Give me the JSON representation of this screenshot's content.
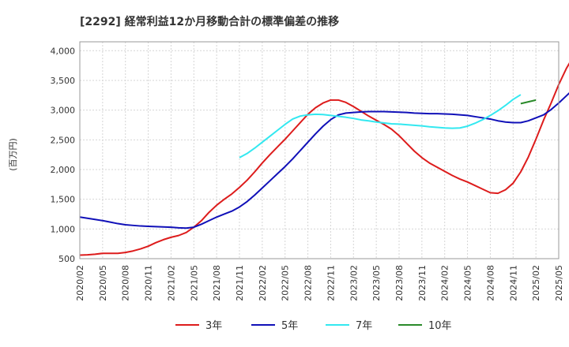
{
  "chart_data": {
    "type": "line",
    "title": "[2292]  経常利益12か月移動合計の標準偏差の推移",
    "ylabel": "(百万円)",
    "xlabel": "",
    "ylim": [
      500,
      4150
    ],
    "yticks": [
      500,
      1000,
      1500,
      2000,
      2500,
      3000,
      3500,
      4000
    ],
    "ytick_labels": [
      "500",
      "1,000",
      "1,500",
      "2,000",
      "2,500",
      "3,000",
      "3,500",
      "4,000"
    ],
    "xticks": [
      "2020/02",
      "2020/05",
      "2020/08",
      "2020/11",
      "2021/02",
      "2021/05",
      "2021/08",
      "2021/11",
      "2022/02",
      "2022/05",
      "2022/08",
      "2022/11",
      "2023/02",
      "2023/05",
      "2023/08",
      "2023/11",
      "2024/02",
      "2024/05",
      "2024/08",
      "2024/11",
      "2025/02",
      "2025/05"
    ],
    "grid": true,
    "legend_position": "bottom",
    "series": [
      {
        "name": "3年",
        "color": "#dd1c1c",
        "start": "2020/02",
        "values": [
          560,
          565,
          575,
          590,
          590,
          590,
          605,
          630,
          665,
          710,
          770,
          820,
          860,
          890,
          940,
          1030,
          1140,
          1280,
          1400,
          1500,
          1590,
          1700,
          1820,
          1960,
          2110,
          2250,
          2380,
          2510,
          2650,
          2790,
          2930,
          3040,
          3120,
          3170,
          3170,
          3130,
          3060,
          2980,
          2900,
          2830,
          2760,
          2680,
          2570,
          2440,
          2310,
          2200,
          2110,
          2040,
          1970,
          1900,
          1840,
          1790,
          1730,
          1670,
          1610,
          1600,
          1660,
          1770,
          1960,
          2210,
          2510,
          2830,
          3120,
          3430,
          3700,
          3920,
          4070
        ]
      },
      {
        "name": "5年",
        "color": "#1010b8",
        "start": "2020/02",
        "values": [
          1200,
          1180,
          1160,
          1140,
          1115,
          1090,
          1070,
          1060,
          1050,
          1045,
          1040,
          1035,
          1030,
          1020,
          1015,
          1030,
          1080,
          1140,
          1200,
          1250,
          1300,
          1370,
          1460,
          1570,
          1690,
          1810,
          1930,
          2050,
          2180,
          2320,
          2460,
          2600,
          2730,
          2840,
          2920,
          2950,
          2960,
          2970,
          2975,
          2975,
          2975,
          2970,
          2965,
          2960,
          2950,
          2945,
          2940,
          2940,
          2935,
          2930,
          2920,
          2910,
          2890,
          2870,
          2850,
          2820,
          2800,
          2790,
          2790,
          2820,
          2870,
          2920,
          3010,
          3120,
          3240,
          3360,
          3480
        ]
      },
      {
        "name": "7年",
        "color": "#33e8f0",
        "start": "2021/11",
        "values": [
          2200,
          2270,
          2360,
          2460,
          2560,
          2660,
          2760,
          2850,
          2900,
          2920,
          2930,
          2925,
          2910,
          2895,
          2880,
          2860,
          2835,
          2820,
          2800,
          2785,
          2770,
          2765,
          2755,
          2745,
          2735,
          2720,
          2710,
          2700,
          2695,
          2700,
          2730,
          2780,
          2840,
          2910,
          2990,
          3080,
          3180,
          3260
        ]
      },
      {
        "name": "10年",
        "color": "#2a8a2a",
        "start": "2024/12",
        "values": [
          3110,
          3140,
          3170
        ]
      }
    ]
  }
}
